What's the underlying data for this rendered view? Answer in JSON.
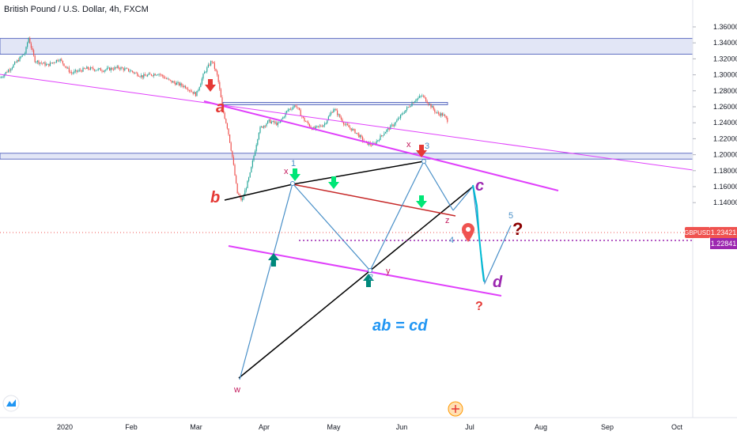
{
  "chart_data": {
    "type": "candlestick",
    "title": "British Pound / U.S. Dollar, 4h, FXCM",
    "symbol": "GBPUSD",
    "last_price": "1.23421",
    "level_price": "1.22841",
    "y_ticks": [
      "1.36000",
      "1.34000",
      "1.32000",
      "1.30000",
      "1.28000",
      "1.26000",
      "1.24000",
      "1.22000",
      "1.20000",
      "1.18000",
      "1.16000",
      "1.14000"
    ],
    "x_ticks": [
      "2020",
      "Feb",
      "Mar",
      "Apr",
      "May",
      "Jun",
      "Jul",
      "Aug",
      "Sep",
      "Oct"
    ],
    "ylim": [
      1.127,
      1.372
    ],
    "zones": [
      [
        1.3258,
        1.3455
      ],
      [
        1.1945,
        1.2018
      ],
      [
        1.2625,
        1.2655
      ]
    ],
    "annotations": {
      "pattern": "ab = cd",
      "a": "a",
      "b": "b",
      "c": "c",
      "d": "d",
      "w": "w",
      "x1": "x",
      "x2": "x",
      "y": "y",
      "z": "z",
      "n1": "1",
      "n2": "2",
      "n3": "3",
      "n4": "4",
      "n5": "5",
      "q_right": "?",
      "q_bottom": "?"
    },
    "colors": {
      "up": "#26a69a",
      "down": "#ef5350",
      "trendline": "#e040fb",
      "wave": "#4a90c8",
      "zone": "#dfe3f5",
      "price": "#ef5350",
      "level": "#9c27b0"
    }
  }
}
